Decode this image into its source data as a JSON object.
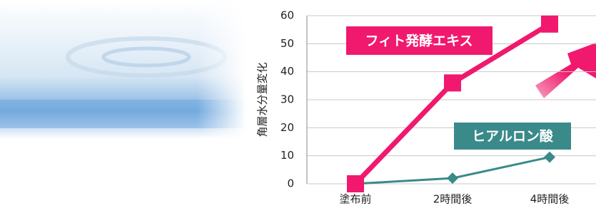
{
  "chart_data": {
    "type": "line",
    "y_label": "角層水分量変化",
    "categories": [
      "塗布前",
      "2時間後",
      "4時間後"
    ],
    "series": [
      {
        "name": "フィト発酵エキス",
        "color": "#f0196e",
        "values": [
          0,
          36,
          57
        ]
      },
      {
        "name": "ヒアルロン酸",
        "color": "#3a8a8a",
        "values": [
          0,
          2,
          9.5
        ]
      }
    ],
    "ylim": [
      0,
      60
    ],
    "yticks": [
      0,
      10,
      20,
      30,
      40,
      50,
      60
    ],
    "grid": true
  }
}
